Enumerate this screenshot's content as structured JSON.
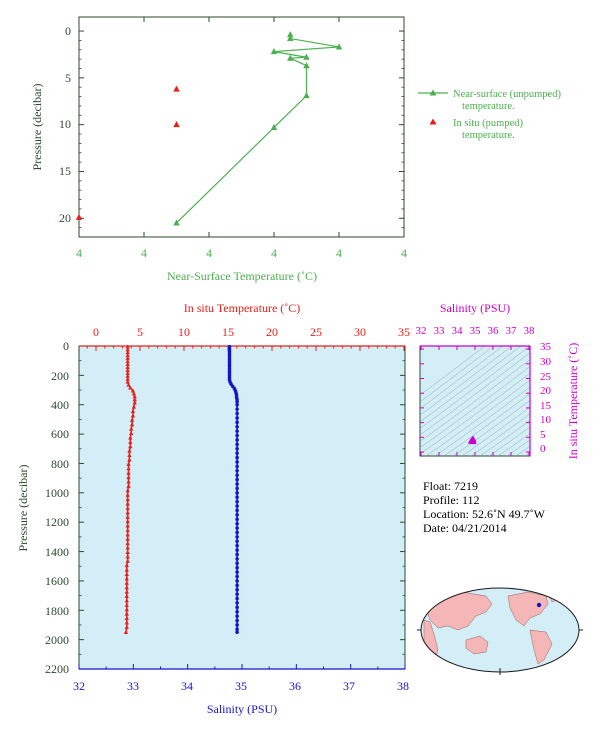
{
  "colors": {
    "green": "#4caf50",
    "red": "#e8201b",
    "blue": "#1515c8",
    "magenta": "#cc00cc",
    "axis_dark": "#2e4a2e",
    "panel_bg": "#d3eef6",
    "land": "#f4b6b6",
    "ocean": "#d3eef6"
  },
  "top_chart": {
    "x_axis_title": "Near-Surface Temperature (˚C)",
    "y_axis_title": "Pressure (decibar)",
    "x_tick_labels": [
      "4",
      "4",
      "4",
      "4",
      "4",
      "4"
    ],
    "y_tick_labels": [
      "0",
      "5",
      "10",
      "15",
      "20"
    ],
    "legend": {
      "unpumped": [
        "Near-surface (unpumped)",
        "temperature."
      ],
      "pumped": [
        "In situ (pumped)",
        "temperature."
      ]
    }
  },
  "profile_chart": {
    "top_axis_title": "In situ Temperature (˚C)",
    "bottom_axis_title": "Salinity (PSU)",
    "y_axis_title": "Pressure (decibar)",
    "temp_tick_labels": [
      "0",
      "5",
      "10",
      "15",
      "20",
      "25",
      "30",
      "35"
    ],
    "sal_tick_labels": [
      "32",
      "33",
      "34",
      "35",
      "36",
      "37",
      "38"
    ],
    "pressure_tick_labels": [
      "0",
      "200",
      "400",
      "600",
      "800",
      "1000",
      "1200",
      "1400",
      "1600",
      "1800",
      "2000",
      "2200"
    ]
  },
  "ts_diagram": {
    "top_axis_title": "Salinity (PSU)",
    "right_axis_title": "In situ Temperature (˚C)",
    "sal_tick_labels": [
      "32",
      "33",
      "34",
      "35",
      "36",
      "37",
      "38"
    ],
    "temp_tick_labels": [
      "35",
      "30",
      "25",
      "20",
      "15",
      "10",
      "5",
      "0"
    ]
  },
  "info": {
    "float": "Float:  7219",
    "profile": "Profile:  112",
    "location": "Location:  52.6˚N  49.7˚W",
    "date": "Date:  04/21/2014"
  },
  "chart_data": [
    {
      "type": "line",
      "name": "near-surface temperature",
      "xlim": [
        3.8,
        4.2
      ],
      "ylim": [
        22,
        -1.5
      ],
      "series": [
        {
          "name": "Near-surface (unpumped) temperature.",
          "points": [
            [
              4.06,
              0.4
            ],
            [
              4.06,
              0.8
            ],
            [
              4.12,
              1.7
            ],
            [
              4.04,
              2.2
            ],
            [
              4.08,
              2.8
            ],
            [
              4.06,
              2.9
            ],
            [
              4.08,
              3.7
            ],
            [
              4.08,
              6.9
            ],
            [
              4.04,
              10.3
            ],
            [
              3.92,
              20.5
            ]
          ]
        },
        {
          "name": "In situ (pumped) temperature.",
          "points": [
            [
              3.92,
              6.2
            ],
            [
              3.92,
              10.0
            ],
            [
              3.8,
              19.9
            ]
          ]
        }
      ]
    },
    {
      "type": "scatter",
      "name": "profile",
      "pressure_range": [
        0,
        2200
      ],
      "temperature_range": [
        -2,
        35
      ],
      "salinity_range": [
        32,
        38
      ],
      "series": [
        {
          "name": "In situ Temperature (˚C)",
          "points": [
            [
              3.6,
              5
            ],
            [
              3.6,
              25
            ],
            [
              3.6,
              45
            ],
            [
              3.6,
              65
            ],
            [
              3.6,
              85
            ],
            [
              3.6,
              105
            ],
            [
              3.6,
              125
            ],
            [
              3.6,
              145
            ],
            [
              3.6,
              165
            ],
            [
              3.6,
              185
            ],
            [
              3.6,
              205
            ],
            [
              3.6,
              225
            ],
            [
              3.6,
              245
            ],
            [
              3.7,
              265
            ],
            [
              3.9,
              285
            ],
            [
              4.2,
              305
            ],
            [
              4.3,
              325
            ],
            [
              4.4,
              345
            ],
            [
              4.4,
              365
            ],
            [
              4.4,
              385
            ],
            [
              4.3,
              415
            ],
            [
              4.2,
              445
            ],
            [
              4.2,
              475
            ],
            [
              4.1,
              505
            ],
            [
              4.1,
              535
            ],
            [
              4.0,
              565
            ],
            [
              4.0,
              595
            ],
            [
              3.9,
              625
            ],
            [
              3.9,
              655
            ],
            [
              3.9,
              685
            ],
            [
              3.8,
              715
            ],
            [
              3.8,
              745
            ],
            [
              3.8,
              775
            ],
            [
              3.7,
              805
            ],
            [
              3.7,
              835
            ],
            [
              3.7,
              865
            ],
            [
              3.7,
              895
            ],
            [
              3.7,
              925
            ],
            [
              3.7,
              955
            ],
            [
              3.6,
              985
            ],
            [
              3.6,
              1015
            ],
            [
              3.6,
              1045
            ],
            [
              3.6,
              1075
            ],
            [
              3.6,
              1105
            ],
            [
              3.6,
              1135
            ],
            [
              3.6,
              1165
            ],
            [
              3.6,
              1195
            ],
            [
              3.6,
              1225
            ],
            [
              3.6,
              1255
            ],
            [
              3.6,
              1285
            ],
            [
              3.6,
              1315
            ],
            [
              3.6,
              1345
            ],
            [
              3.6,
              1375
            ],
            [
              3.6,
              1405
            ],
            [
              3.6,
              1435
            ],
            [
              3.6,
              1465
            ],
            [
              3.5,
              1495
            ],
            [
              3.5,
              1525
            ],
            [
              3.5,
              1555
            ],
            [
              3.5,
              1585
            ],
            [
              3.5,
              1615
            ],
            [
              3.5,
              1645
            ],
            [
              3.5,
              1675
            ],
            [
              3.5,
              1705
            ],
            [
              3.5,
              1735
            ],
            [
              3.5,
              1765
            ],
            [
              3.5,
              1795
            ],
            [
              3.5,
              1825
            ],
            [
              3.5,
              1855
            ],
            [
              3.5,
              1885
            ],
            [
              3.5,
              1915
            ],
            [
              3.4,
              1950
            ]
          ]
        },
        {
          "name": "Salinity (PSU)",
          "points": [
            [
              34.77,
              5
            ],
            [
              34.77,
              20
            ],
            [
              34.77,
              35
            ],
            [
              34.77,
              50
            ],
            [
              34.77,
              65
            ],
            [
              34.77,
              80
            ],
            [
              34.77,
              95
            ],
            [
              34.77,
              110
            ],
            [
              34.77,
              125
            ],
            [
              34.77,
              140
            ],
            [
              34.77,
              155
            ],
            [
              34.77,
              170
            ],
            [
              34.77,
              185
            ],
            [
              34.77,
              200
            ],
            [
              34.77,
              215
            ],
            [
              34.77,
              230
            ],
            [
              34.78,
              245
            ],
            [
              34.8,
              260
            ],
            [
              34.83,
              275
            ],
            [
              34.86,
              290
            ],
            [
              34.88,
              305
            ],
            [
              34.89,
              320
            ],
            [
              34.9,
              335
            ],
            [
              34.9,
              350
            ],
            [
              34.91,
              365
            ],
            [
              34.91,
              380
            ],
            [
              34.91,
              400
            ],
            [
              34.91,
              430
            ],
            [
              34.91,
              460
            ],
            [
              34.91,
              490
            ],
            [
              34.91,
              520
            ],
            [
              34.91,
              550
            ],
            [
              34.91,
              580
            ],
            [
              34.91,
              610
            ],
            [
              34.91,
              640
            ],
            [
              34.91,
              670
            ],
            [
              34.91,
              700
            ],
            [
              34.91,
              730
            ],
            [
              34.91,
              760
            ],
            [
              34.91,
              790
            ],
            [
              34.91,
              820
            ],
            [
              34.91,
              850
            ],
            [
              34.91,
              880
            ],
            [
              34.91,
              910
            ],
            [
              34.91,
              940
            ],
            [
              34.91,
              970
            ],
            [
              34.91,
              1000
            ],
            [
              34.91,
              1030
            ],
            [
              34.91,
              1060
            ],
            [
              34.91,
              1090
            ],
            [
              34.91,
              1120
            ],
            [
              34.91,
              1150
            ],
            [
              34.91,
              1180
            ],
            [
              34.91,
              1210
            ],
            [
              34.91,
              1240
            ],
            [
              34.91,
              1270
            ],
            [
              34.91,
              1300
            ],
            [
              34.91,
              1330
            ],
            [
              34.91,
              1360
            ],
            [
              34.91,
              1390
            ],
            [
              34.91,
              1420
            ],
            [
              34.91,
              1450
            ],
            [
              34.91,
              1480
            ],
            [
              34.91,
              1510
            ],
            [
              34.91,
              1540
            ],
            [
              34.91,
              1570
            ],
            [
              34.91,
              1600
            ],
            [
              34.91,
              1630
            ],
            [
              34.91,
              1660
            ],
            [
              34.91,
              1690
            ],
            [
              34.91,
              1720
            ],
            [
              34.91,
              1750
            ],
            [
              34.91,
              1780
            ],
            [
              34.91,
              1810
            ],
            [
              34.91,
              1840
            ],
            [
              34.91,
              1870
            ],
            [
              34.91,
              1900
            ],
            [
              34.91,
              1930
            ],
            [
              34.91,
              1950
            ]
          ]
        }
      ]
    },
    {
      "type": "scatter",
      "name": "T-S diagram",
      "xlim": [
        32,
        38
      ],
      "ylim": [
        -2,
        36
      ],
      "series": [
        {
          "name": "T-S",
          "points": [
            [
              34.77,
              3.6
            ],
            [
              34.8,
              3.8
            ],
            [
              34.86,
              4.3
            ],
            [
              34.9,
              4.4
            ],
            [
              34.91,
              4.1
            ],
            [
              34.91,
              3.8
            ],
            [
              34.91,
              3.6
            ],
            [
              34.91,
              3.5
            ]
          ]
        }
      ]
    }
  ]
}
